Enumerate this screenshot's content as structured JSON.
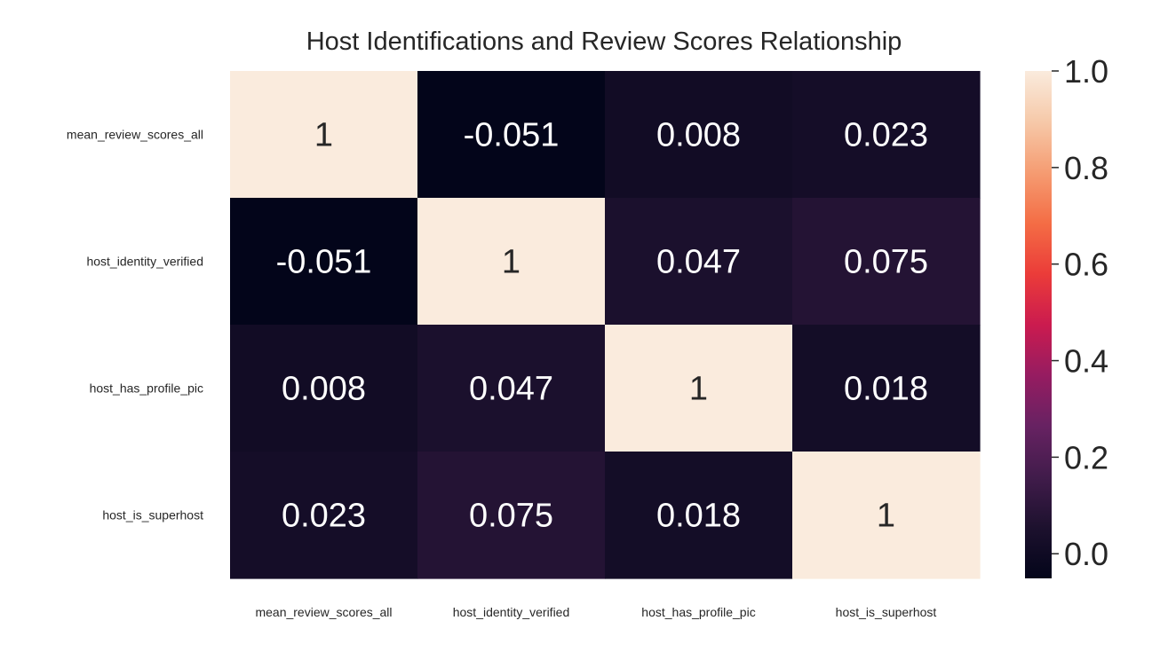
{
  "chart_data": {
    "type": "heatmap",
    "title": "Host Identifications and Review Scores Relationship",
    "x_labels": [
      "mean_review_scores_all",
      "host_identity_verified",
      "host_has_profile_pic",
      "host_is_superhost"
    ],
    "y_labels": [
      "mean_review_scores_all",
      "host_identity_verified",
      "host_has_profile_pic",
      "host_is_superhost"
    ],
    "values": [
      [
        1,
        -0.051,
        0.008,
        0.023
      ],
      [
        -0.051,
        1,
        0.047,
        0.075
      ],
      [
        0.008,
        0.047,
        1,
        0.018
      ],
      [
        0.023,
        0.075,
        0.018,
        1
      ]
    ],
    "annotations": [
      [
        "1",
        "-0.051",
        "0.008",
        "0.023"
      ],
      [
        "-0.051",
        "1",
        "0.047",
        "0.075"
      ],
      [
        "0.008",
        "0.047",
        "1",
        "0.018"
      ],
      [
        "0.023",
        "0.075",
        "0.018",
        "1"
      ]
    ],
    "colormap": "rocket",
    "colorbar": {
      "vmin": -0.051,
      "vmax": 1,
      "ticks": [
        0.0,
        0.2,
        0.4,
        0.6,
        0.8,
        1.0
      ],
      "tick_labels": [
        "0.0",
        "0.2",
        "0.4",
        "0.6",
        "0.8",
        "1.0"
      ]
    },
    "annotation_color_dark_bg": "#ffffff",
    "annotation_color_light_bg": "#262626"
  }
}
